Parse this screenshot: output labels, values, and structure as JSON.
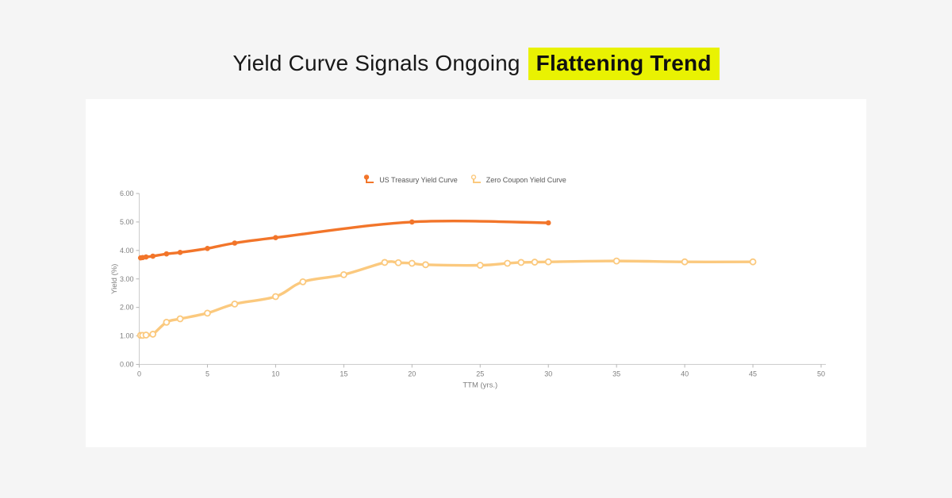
{
  "title": {
    "prefix": "Yield Curve Signals Ongoing ",
    "highlight": "Flattening Trend"
  },
  "colors": {
    "page_background": "#f5f5f5",
    "card_background": "#ffffff",
    "title_text": "#181818",
    "highlight_background": "#e9f202",
    "axis_line": "#cccccc",
    "tick_mark": "#b5b5b5",
    "axis_text": "#7f7f7f",
    "legend_text": "#555555"
  },
  "chart_data": {
    "type": "line",
    "title": "",
    "xlabel": "TTM (yrs.)",
    "ylabel": "Yield (%)",
    "xlim": [
      0,
      50
    ],
    "ylim": [
      0,
      6
    ],
    "x_ticks": [
      0,
      5,
      10,
      15,
      20,
      25,
      30,
      35,
      40,
      45,
      50
    ],
    "y_ticks": [
      0,
      1,
      2,
      3,
      4,
      5,
      6
    ],
    "y_tick_labels": [
      "0.00",
      "1.00",
      "2.00",
      "3.00",
      "4.00",
      "5.00",
      "6.00"
    ],
    "grid": false,
    "legend_position": "top-center",
    "series": [
      {
        "name": "US Treasury Yield Curve",
        "color": "#f2752a",
        "marker": "filled",
        "points": [
          [
            0.1,
            3.74
          ],
          [
            0.25,
            3.75
          ],
          [
            0.5,
            3.77
          ],
          [
            1,
            3.8
          ],
          [
            2,
            3.88
          ],
          [
            3,
            3.93
          ],
          [
            5,
            4.07
          ],
          [
            7,
            4.26
          ],
          [
            10,
            4.45
          ],
          [
            20,
            5.0
          ],
          [
            30,
            4.97
          ]
        ]
      },
      {
        "name": "Zero Coupon Yield Curve",
        "color": "#fbc97e",
        "marker": "hollow",
        "points": [
          [
            0.1,
            1.02
          ],
          [
            0.25,
            1.02
          ],
          [
            0.5,
            1.03
          ],
          [
            1,
            1.06
          ],
          [
            2,
            1.48
          ],
          [
            3,
            1.6
          ],
          [
            5,
            1.8
          ],
          [
            7,
            2.12
          ],
          [
            10,
            2.38
          ],
          [
            12,
            2.9
          ],
          [
            15,
            3.15
          ],
          [
            18,
            3.58
          ],
          [
            19,
            3.57
          ],
          [
            20,
            3.55
          ],
          [
            21,
            3.5
          ],
          [
            25,
            3.48
          ],
          [
            27,
            3.55
          ],
          [
            28,
            3.58
          ],
          [
            29,
            3.59
          ],
          [
            30,
            3.6
          ],
          [
            35,
            3.63
          ],
          [
            40,
            3.6
          ],
          [
            45,
            3.6
          ]
        ]
      }
    ]
  }
}
